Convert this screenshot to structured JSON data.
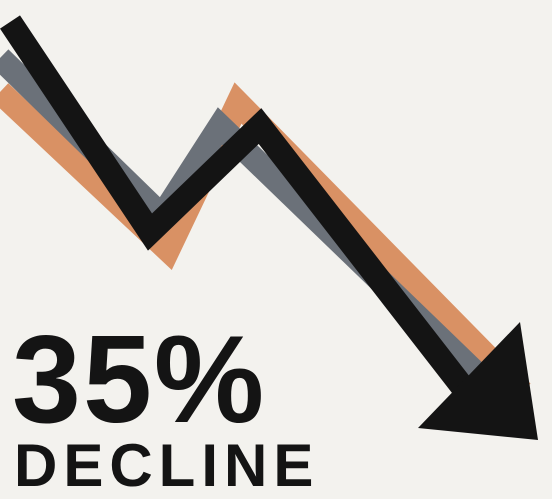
{
  "infographic": {
    "headline": "35%",
    "subline": "DECLINE",
    "icon": "downward-zigzag-arrow-icon"
  },
  "colors": {
    "background": "#f3f2ee",
    "stripe_black": "#141414",
    "stripe_gray": "#6b7179",
    "stripe_orange": "#d99164",
    "text": "#141414"
  }
}
